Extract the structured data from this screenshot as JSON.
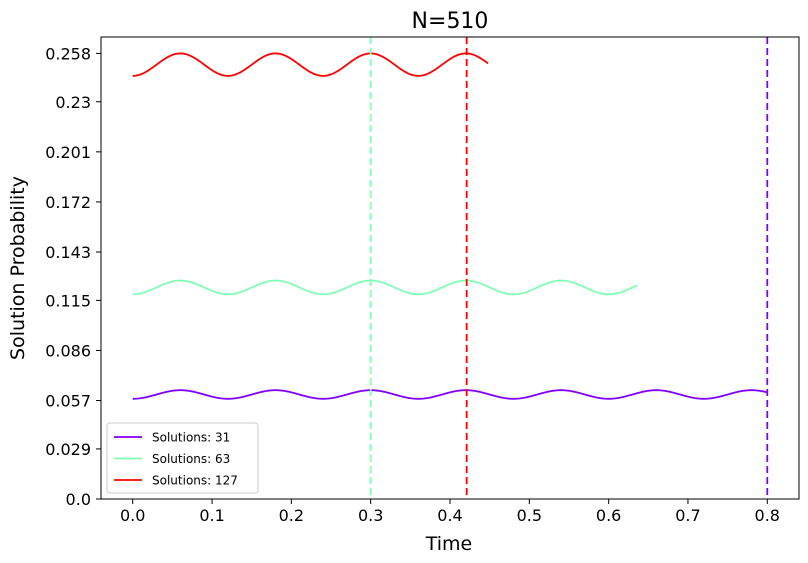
{
  "chart_data": {
    "type": "line",
    "title": "N=510",
    "xlabel": "Time",
    "ylabel": "Solution Probability",
    "xlim": [
      -0.04,
      0.84
    ],
    "ylim": [
      0.0,
      0.2675
    ],
    "xticks": [
      "0.0",
      "0.1",
      "0.2",
      "0.3",
      "0.4",
      "0.5",
      "0.6",
      "0.7",
      "0.8"
    ],
    "yticks": [
      "0.0",
      "0.029",
      "0.057",
      "0.086",
      "0.115",
      "0.143",
      "0.172",
      "0.201",
      "0.23",
      "0.258"
    ],
    "ytick_values": [
      0.0,
      0.029,
      0.057,
      0.086,
      0.115,
      0.143,
      0.172,
      0.201,
      0.23,
      0.258
    ],
    "grid": false,
    "legend_position": "lower-left",
    "series": [
      {
        "name": "Solutions: 31",
        "color": "#8000ff",
        "x_end": 0.8,
        "base": 0.0605,
        "amplitude": 0.0025,
        "period": 0.12,
        "phase": 0.0,
        "vline_x": 0.8
      },
      {
        "name": "Solutions: 63",
        "color": "#80ffb4",
        "x_end": 0.636,
        "base": 0.1225,
        "amplitude": 0.004,
        "period": 0.12,
        "phase": 0.0,
        "vline_x": 0.3
      },
      {
        "name": "Solutions: 127",
        "color": "#ff0000",
        "x_end": 0.448,
        "base": 0.2515,
        "amplitude": 0.0065,
        "period": 0.12,
        "phase": 0.0,
        "vline_x": 0.421
      }
    ]
  }
}
